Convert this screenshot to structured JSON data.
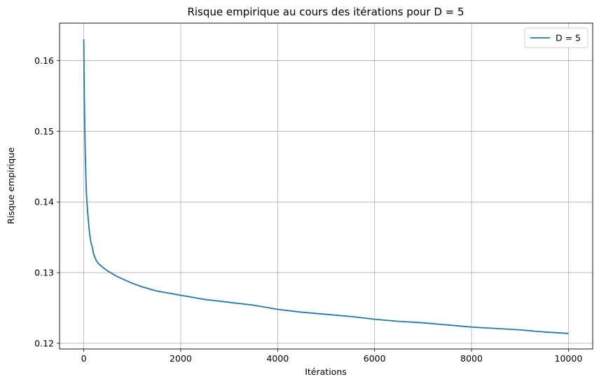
{
  "chart_data": {
    "type": "line",
    "title": "Risque empirique au cours des itérations pour D = 5",
    "xlabel": "Itérations",
    "ylabel": "Risque empirique",
    "xlim": [
      -500,
      10500
    ],
    "ylim": [
      0.1192,
      0.1653
    ],
    "xticks": [
      0,
      2000,
      4000,
      6000,
      8000,
      10000
    ],
    "yticks": [
      0.12,
      0.13,
      0.14,
      0.15,
      0.16
    ],
    "xtick_labels": [
      "0",
      "2000",
      "4000",
      "6000",
      "8000",
      "10000"
    ],
    "ytick_labels": [
      "0.12",
      "0.13",
      "0.14",
      "0.15",
      "0.16"
    ],
    "grid": true,
    "legend_position": "top-right",
    "series": [
      {
        "name": "D = 5",
        "color": "#1f77b4",
        "x": [
          0,
          5,
          10,
          20,
          30,
          40,
          50,
          60,
          80,
          100,
          120,
          150,
          180,
          200,
          250,
          300,
          350,
          400,
          500,
          600,
          700,
          800,
          1000,
          1200,
          1500,
          2000,
          2500,
          3000,
          3500,
          4000,
          4500,
          5000,
          5500,
          6000,
          6500,
          7000,
          7500,
          8000,
          8500,
          9000,
          9500,
          10000
        ],
        "values": [
          0.163,
          0.159,
          0.155,
          0.151,
          0.147,
          0.1445,
          0.142,
          0.1405,
          0.1385,
          0.137,
          0.1355,
          0.1342,
          0.1335,
          0.1327,
          0.1318,
          0.1313,
          0.131,
          0.1307,
          0.1302,
          0.1298,
          0.1294,
          0.1291,
          0.1285,
          0.128,
          0.1274,
          0.1268,
          0.1262,
          0.1258,
          0.1254,
          0.1248,
          0.1244,
          0.1241,
          0.1238,
          0.1234,
          0.1231,
          0.1229,
          0.1226,
          0.1223,
          0.1221,
          0.1219,
          0.1216,
          0.1214
        ]
      }
    ]
  }
}
